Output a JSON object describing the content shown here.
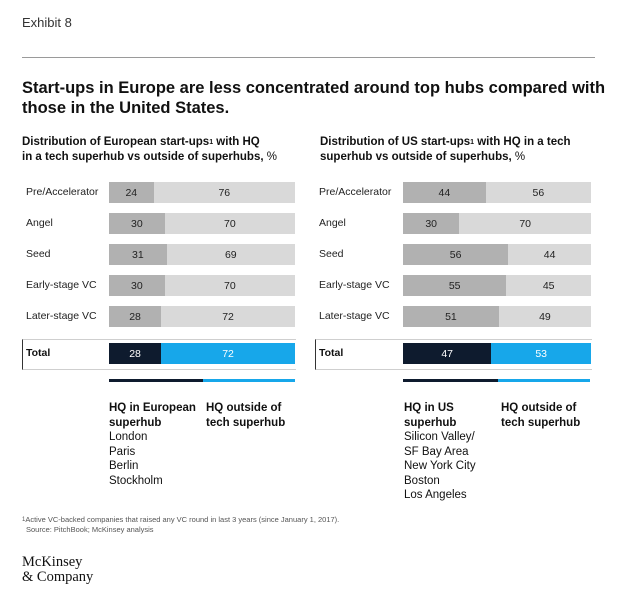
{
  "exhibit": "Exhibit 8",
  "headline_line1": "Start-ups in Europe are less concentrated around top hubs compared with",
  "headline_line2": "those in the United States.",
  "chart_data": [
    {
      "type": "bar",
      "stacked": true,
      "orientation": "horizontal",
      "title_line1": "Distribution of European start-ups",
      "title_sup": "1",
      "title_line1_end": " with HQ",
      "title_line2": "in a tech superhub vs outside of superhubs, ",
      "title_unit": "%",
      "categories": [
        "Pre/Accelerator",
        "Angel",
        "Seed",
        "Early-stage VC",
        "Later-stage VC"
      ],
      "series": [
        {
          "name": "HQ in European superhub",
          "values": [
            24,
            30,
            31,
            30,
            28
          ]
        },
        {
          "name": "HQ outside of tech superhub",
          "values": [
            76,
            70,
            69,
            70,
            72
          ]
        }
      ],
      "total": {
        "label": "Total",
        "values": [
          28,
          72
        ]
      },
      "xlim": [
        0,
        100
      ]
    },
    {
      "type": "bar",
      "stacked": true,
      "orientation": "horizontal",
      "title_line1": "Distribution of US start-ups",
      "title_sup": "1",
      "title_line1_end": " with HQ in a tech",
      "title_line2": "superhub vs outside of superhubs, ",
      "title_unit": "%",
      "categories": [
        "Pre/Accelerator",
        "Angel",
        "Seed",
        "Early-stage VC",
        "Later-stage VC"
      ],
      "series": [
        {
          "name": "HQ in US superhub",
          "values": [
            44,
            30,
            56,
            55,
            51
          ]
        },
        {
          "name": "HQ outside of tech superhub",
          "values": [
            56,
            70,
            44,
            45,
            49
          ]
        }
      ],
      "total": {
        "label": "Total",
        "values": [
          47,
          53
        ]
      },
      "xlim": [
        0,
        100
      ]
    }
  ],
  "legend": {
    "eu_in_head": [
      "HQ in European",
      "superhub"
    ],
    "eu_in_items": [
      "London",
      "Paris",
      "Berlin",
      "Stockholm"
    ],
    "eu_out_head": [
      "HQ outside of",
      "tech superhub"
    ],
    "us_in_head": [
      "HQ in US",
      "superhub"
    ],
    "us_in_items": [
      "Silicon Valley/",
      "SF Bay Area",
      "New York City",
      "Boston",
      "Los Angeles"
    ],
    "us_out_head": [
      "HQ outside of",
      "tech superhub"
    ]
  },
  "colors": {
    "in_hub": "#b1b1b1",
    "out_hub": "#d9d9d9",
    "total_in": "#0e1b2e",
    "total_out": "#17a7ea"
  },
  "footnote_line1": "Active VC-backed companies that raised any VC round in last 3 years (since January 1, 2017).",
  "footnote_sup": "1",
  "footnote_line2": "Source: PitchBook; McKinsey analysis",
  "logo_line1": "McKinsey",
  "logo_line2": "& Company"
}
